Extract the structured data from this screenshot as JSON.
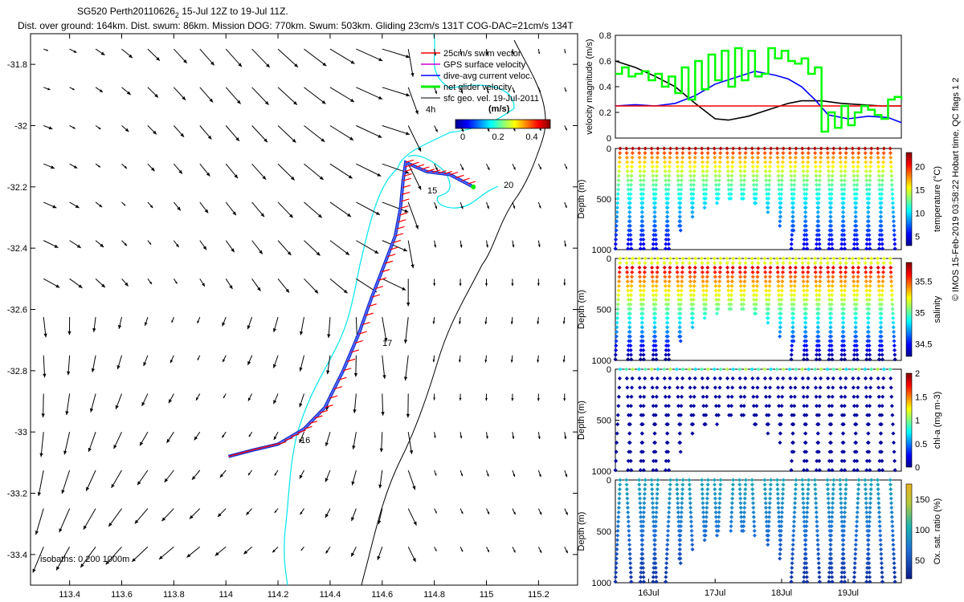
{
  "header": {
    "line1": "SG520 Perth20110626",
    "line1_sub": "2",
    "line1_rest": " 15-Jul 12Z to 19-Jul 11Z.",
    "line2": "Dist. over ground: 164km. Dist. swum: 86km. Mission DOG: 770km. Swum: 503km. Gliding 23cm/s 131T COG-DAC=21cm/s 134T"
  },
  "credit": "© IMOS 15-Feb-2019 03:58:22 Hobart time. QC flags 1  2",
  "chart_data": [
    {
      "type": "scatter",
      "name": "track-map",
      "x_ticks": [
        "113.4",
        "113.6",
        "113.8",
        "114",
        "114.2",
        "114.4",
        "114.6",
        "114.8",
        "115",
        "115.2"
      ],
      "y_ticks": [
        "-31.8",
        "-32",
        "-32.2",
        "-32.4",
        "-32.6",
        "-32.8",
        "-33",
        "-33.2",
        "-33.4"
      ],
      "xlim": [
        113.25,
        115.35
      ],
      "ylim": [
        -33.5,
        -31.7
      ],
      "legend": [
        "25cm/s swim vector",
        "GPS surface velocity",
        "dive-avg current veloc.",
        "net glider velocity",
        "sfc geo. vel. 19-Jul-2011"
      ],
      "colorbar_label": "(m/s)",
      "colorbar_ticks": [
        "0",
        "0.2",
        "0.4"
      ],
      "isobaths_label": "isobaths: 0  200  1000m",
      "day_labels": [
        "15",
        "16",
        "17",
        "20"
      ],
      "extra_label": "4h",
      "track": [
        [
          114.01,
          -33.08
        ],
        [
          114.1,
          -33.06
        ],
        [
          114.2,
          -33.04
        ],
        [
          114.3,
          -32.99
        ],
        [
          114.38,
          -32.92
        ],
        [
          114.45,
          -32.8
        ],
        [
          114.51,
          -32.68
        ],
        [
          114.56,
          -32.56
        ],
        [
          114.61,
          -32.45
        ],
        [
          114.65,
          -32.36
        ],
        [
          114.67,
          -32.27
        ],
        [
          114.68,
          -32.18
        ],
        [
          114.69,
          -32.12
        ],
        [
          114.77,
          -32.15
        ],
        [
          114.86,
          -32.16
        ],
        [
          114.95,
          -32.2
        ]
      ]
    },
    {
      "type": "line",
      "name": "velocity",
      "ylabel": "velocity magnitude (m/s)",
      "ylim": [
        0,
        0.8
      ],
      "y_ticks": [
        "0",
        "0.2",
        "0.4",
        "0.6",
        "0.8"
      ],
      "x_days": [
        15.5,
        19.8
      ],
      "series": [
        {
          "color": "#000000",
          "x": [
            15.5,
            15.8,
            16.1,
            16.4,
            16.7,
            17.0,
            17.2,
            17.5,
            17.8,
            18.1,
            18.3,
            18.6,
            18.9,
            19.2,
            19.5,
            19.8
          ],
          "values": [
            0.6,
            0.55,
            0.48,
            0.4,
            0.27,
            0.15,
            0.14,
            0.17,
            0.22,
            0.27,
            0.29,
            0.29,
            0.27,
            0.26,
            0.25,
            0.25
          ]
        },
        {
          "color": "#0000ff",
          "x": [
            15.5,
            15.8,
            16.1,
            16.4,
            16.7,
            17.0,
            17.3,
            17.6,
            17.9,
            18.1,
            18.3,
            18.5,
            18.7,
            19.0,
            19.3,
            19.6,
            19.8
          ],
          "values": [
            0.25,
            0.26,
            0.25,
            0.27,
            0.33,
            0.42,
            0.47,
            0.52,
            0.49,
            0.46,
            0.4,
            0.3,
            0.18,
            0.15,
            0.17,
            0.16,
            0.12
          ]
        },
        {
          "color": "#ff0000",
          "x": [
            15.5,
            19.8
          ],
          "values": [
            0.25,
            0.25
          ]
        },
        {
          "color": "#00ff00",
          "x": [
            15.5,
            15.6,
            15.7,
            15.8,
            15.9,
            16.0,
            16.1,
            16.2,
            16.3,
            16.4,
            16.5,
            16.6,
            16.7,
            16.8,
            16.9,
            17.0,
            17.1,
            17.2,
            17.3,
            17.4,
            17.5,
            17.6,
            17.7,
            17.8,
            17.9,
            18.0,
            18.1,
            18.2,
            18.3,
            18.4,
            18.5,
            18.6,
            18.7,
            18.8,
            18.9,
            19.0,
            19.1,
            19.2,
            19.3,
            19.4,
            19.5,
            19.6,
            19.7,
            19.8
          ],
          "values": [
            0.5,
            0.55,
            0.48,
            0.5,
            0.52,
            0.45,
            0.5,
            0.4,
            0.48,
            0.35,
            0.55,
            0.3,
            0.6,
            0.38,
            0.65,
            0.45,
            0.68,
            0.4,
            0.7,
            0.45,
            0.68,
            0.48,
            0.5,
            0.7,
            0.62,
            0.68,
            0.6,
            0.58,
            0.62,
            0.5,
            0.55,
            0.05,
            0.2,
            0.08,
            0.25,
            0.1,
            0.2,
            0.25,
            0.22,
            0.18,
            0.15,
            0.3,
            0.32,
            0.3
          ]
        }
      ]
    },
    {
      "type": "scatter",
      "name": "temperature",
      "ylabel": "Depth (m)",
      "colorbar_label": "temperature (°C)",
      "y_ticks": [
        "0",
        "500",
        "1000"
      ],
      "cbar_ticks": [
        "5",
        "10",
        "15",
        "20"
      ],
      "cmin": 3,
      "cmax": 23,
      "variable": "temperature"
    },
    {
      "type": "scatter",
      "name": "salinity",
      "ylabel": "Depth (m)",
      "colorbar_label": "salinity",
      "y_ticks": [
        "0",
        "500",
        "1000"
      ],
      "cbar_ticks": [
        "34.5",
        "35",
        "35.5"
      ],
      "cmin": 34.3,
      "cmax": 35.8,
      "variable": "salinity"
    },
    {
      "type": "scatter",
      "name": "chla",
      "ylabel": "Depth (m)",
      "colorbar_label": "chl-a (mg m-3)",
      "y_ticks": [
        "0",
        "500",
        "1000"
      ],
      "cbar_ticks": [
        "0",
        "0.5",
        "1",
        "1.5",
        "2"
      ],
      "cmin": 0,
      "cmax": 2,
      "variable": "chla"
    },
    {
      "type": "scatter",
      "name": "oxygen",
      "ylabel": "Depth (m)",
      "colorbar_label": "Ox. sat. ratio (%)",
      "y_ticks": [
        "0",
        "500",
        "1000"
      ],
      "cbar_ticks": [
        "50",
        "100",
        "150"
      ],
      "cmin": 20,
      "cmax": 175,
      "variable": "oxygen",
      "x_ticks": [
        "16Jul",
        "17Jul",
        "18Jul",
        "19Jul"
      ]
    }
  ]
}
